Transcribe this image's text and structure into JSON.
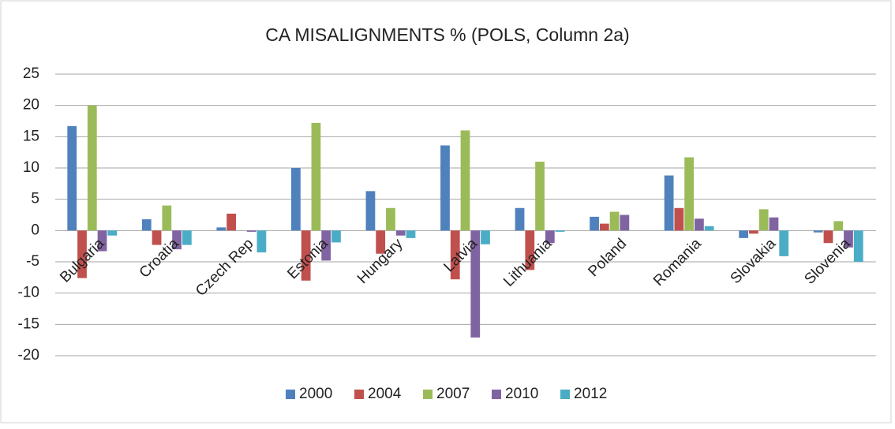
{
  "chart_data": {
    "type": "bar",
    "title": "CA MISALIGNMENTS  % (POLS, Column 2a)",
    "categories": [
      "Bulgaria",
      "Croatia",
      "Czech Rep",
      "Estonia",
      "Hungary",
      "Latvia",
      "Lithuania",
      "Poland",
      "Romania",
      "Slovakia",
      "Slovenia"
    ],
    "series": [
      {
        "name": "2000",
        "color": "#4f81bd",
        "values": [
          16.7,
          1.8,
          0.5,
          10,
          6.3,
          13.6,
          3.6,
          2.2,
          8.8,
          -1.2,
          -0.3
        ]
      },
      {
        "name": "2004",
        "color": "#c0504d",
        "values": [
          -7.6,
          -2.3,
          2.7,
          -8,
          -3.7,
          -7.8,
          -6.3,
          1.1,
          3.6,
          -0.5,
          -2.0
        ]
      },
      {
        "name": "2007",
        "color": "#9bbb59",
        "values": [
          20,
          4.0,
          null,
          17.2,
          3.6,
          16,
          11,
          3.0,
          11.7,
          3.4,
          1.5
        ]
      },
      {
        "name": "2010",
        "color": "#8064a2",
        "values": [
          -3.3,
          -3.0,
          -0.2,
          -4.8,
          -0.8,
          -17.1,
          -2,
          2.5,
          1.9,
          2.1,
          -2.7
        ]
      },
      {
        "name": "2012",
        "color": "#4bacc6",
        "values": [
          -0.8,
          -2.3,
          -3.5,
          -1.9,
          -1.2,
          -2.2,
          -0.2,
          null,
          0.7,
          -4.1,
          -5.0
        ]
      }
    ],
    "ylim": [
      -25,
      25
    ],
    "yticks": [
      -20,
      -15,
      -10,
      -5,
      0,
      5,
      10,
      15,
      20,
      25
    ],
    "grid": true,
    "legend": "bottom"
  }
}
